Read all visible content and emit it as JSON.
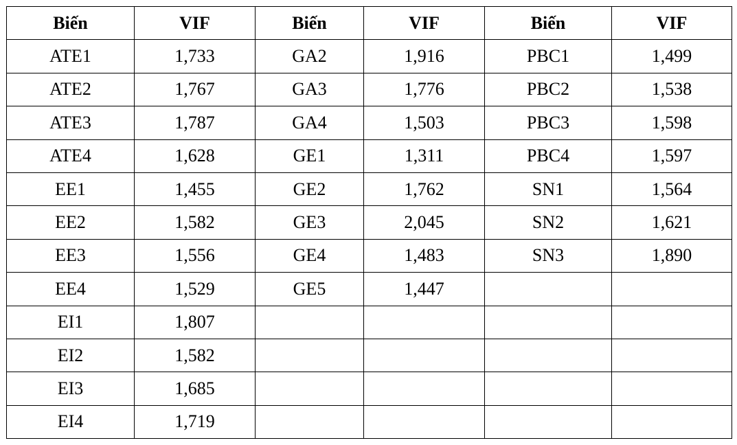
{
  "table": {
    "header": [
      "Biến",
      "VIF",
      "Biến",
      "VIF",
      "Biến",
      "VIF"
    ],
    "rows": [
      [
        "ATE1",
        "1,733",
        "GA2",
        "1,916",
        "PBC1",
        "1,499"
      ],
      [
        "ATE2",
        "1,767",
        "GA3",
        "1,776",
        "PBC2",
        "1,538"
      ],
      [
        "ATE3",
        "1,787",
        "GA4",
        "1,503",
        "PBC3",
        "1,598"
      ],
      [
        "ATE4",
        "1,628",
        "GE1",
        "1,311",
        "PBC4",
        "1,597"
      ],
      [
        "EE1",
        "1,455",
        "GE2",
        "1,762",
        "SN1",
        "1,564"
      ],
      [
        "EE2",
        "1,582",
        "GE3",
        "2,045",
        "SN2",
        "1,621"
      ],
      [
        "EE3",
        "1,556",
        "GE4",
        "1,483",
        "SN3",
        "1,890"
      ],
      [
        "EE4",
        "1,529",
        "GE5",
        "1,447",
        null,
        null
      ],
      [
        "EI1",
        "1,807",
        null,
        null,
        null,
        null
      ],
      [
        "EI2",
        "1,582",
        null,
        null,
        null,
        null
      ],
      [
        "EI3",
        "1,685",
        null,
        null,
        null,
        null
      ],
      [
        "EI4",
        "1,719",
        null,
        null,
        null,
        null
      ]
    ]
  }
}
